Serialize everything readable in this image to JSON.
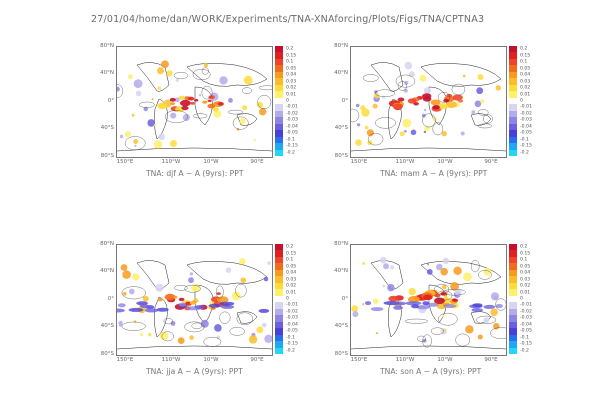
{
  "header": {
    "path": "27/01/04/home/dan/WORK/Experiments/TNA-XNAforcing/Plots/Figs/TNA/CPTNA3"
  },
  "lat_labels": [
    "80°N",
    "40°N",
    "0°",
    "40°S",
    "80°S"
  ],
  "lon_labels": [
    "150°E",
    "110°W",
    "10°W",
    "90°E"
  ],
  "colorbar": {
    "labels": [
      "0.2",
      "0.15",
      "0.1",
      "0.05",
      "0.04",
      "0.03",
      "0.02",
      "0.01",
      "0",
      "-0.01",
      "-0.02",
      "-0.03",
      "-0.04",
      "-0.05",
      "-0.1",
      "-0.15",
      "-0.2"
    ],
    "colors": [
      "#c8102e",
      "#e0201f",
      "#f0442a",
      "#f56b1e",
      "#f89a1e",
      "#fbbd2a",
      "#fddc3a",
      "#fff06a",
      "#ffffff",
      "#d8d4f2",
      "#b3aceb",
      "#8e85e3",
      "#6a5fdc",
      "#4a3fd6",
      "#2a6ef0",
      "#1fa9f2",
      "#22d6f5"
    ]
  },
  "panels": [
    {
      "id": "djf",
      "title": "TNA: djf A  − A  (9yrs): PPT"
    },
    {
      "id": "mam",
      "title": "TNA: mam A  − A  (9yrs): PPT"
    },
    {
      "id": "jja",
      "title": "TNA: jja A  − A  (9yrs): PPT"
    },
    {
      "id": "son",
      "title": "TNA: son A  − A  (9yrs): PPT"
    }
  ]
}
